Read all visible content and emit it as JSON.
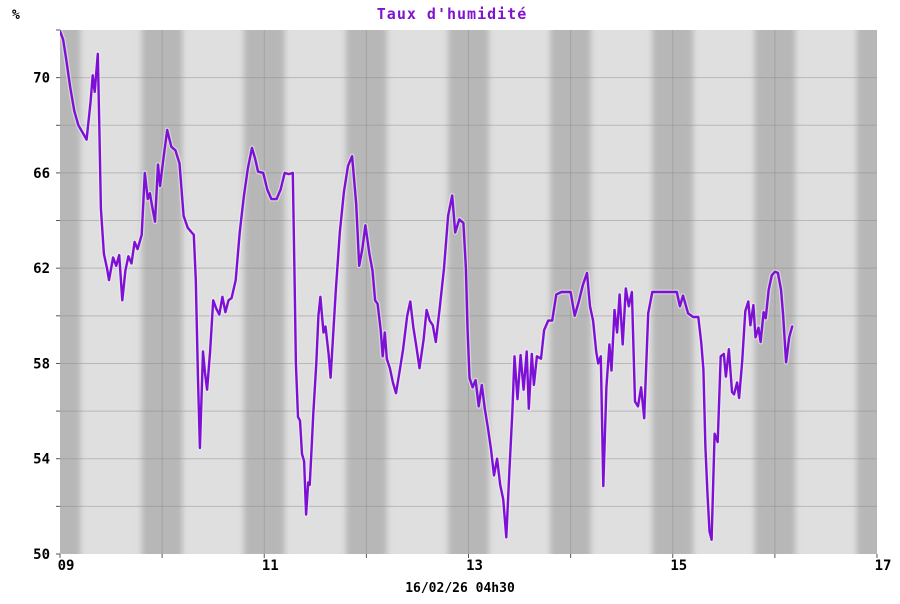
{
  "title": "Taux d'humidité",
  "y_axis_unit_label": "%",
  "footer_label": "16/02/26 04h30",
  "colors": {
    "line": "#7d0fd6",
    "line_halo": "#f2f2f2",
    "title": "#8213cf",
    "stripe_light": "#dfdfdf",
    "stripe_dark": "#b7b7b7",
    "gridline": "#8a8a8a",
    "axis_text": "#000000",
    "background": "#ffffff"
  },
  "chart_data": {
    "type": "line",
    "title": "Taux d'humidité",
    "ylabel": "%",
    "xlabel": "16/02/26 04h30",
    "xlim": [
      9,
      17
    ],
    "ylim": [
      50,
      72
    ],
    "grid": true,
    "legend": "none",
    "x_tick_hours": [
      9,
      11,
      13,
      15,
      17
    ],
    "x_tick_labels": [
      "09",
      "11",
      "13",
      "15",
      "17"
    ],
    "y_tick_values_labeled": [
      50,
      54,
      58,
      62,
      66,
      70
    ],
    "y_gridline_step": 2,
    "x_gridline_step_hours": 1,
    "background_stripes": {
      "centered_on_hour": true,
      "band_width_hours": 0.4,
      "period_hours": 1
    },
    "series": [
      {
        "name": "Taux d'humidité",
        "color": "#7d0fd6",
        "points": [
          [
            9.0,
            71.95
          ],
          [
            9.03,
            71.6
          ],
          [
            9.06,
            70.8
          ],
          [
            9.1,
            69.6
          ],
          [
            9.14,
            68.6
          ],
          [
            9.18,
            68.0
          ],
          [
            9.22,
            67.7
          ],
          [
            9.26,
            67.4
          ],
          [
            9.3,
            69.0
          ],
          [
            9.32,
            70.1
          ],
          [
            9.34,
            69.4
          ],
          [
            9.37,
            71.0
          ],
          [
            9.385,
            68.0
          ],
          [
            9.4,
            64.5
          ],
          [
            9.43,
            62.6
          ],
          [
            9.46,
            62.0
          ],
          [
            9.48,
            61.5
          ],
          [
            9.52,
            62.45
          ],
          [
            9.55,
            62.1
          ],
          [
            9.58,
            62.55
          ],
          [
            9.61,
            60.65
          ],
          [
            9.64,
            61.9
          ],
          [
            9.67,
            62.5
          ],
          [
            9.7,
            62.2
          ],
          [
            9.73,
            63.1
          ],
          [
            9.76,
            62.8
          ],
          [
            9.8,
            63.4
          ],
          [
            9.83,
            66.0
          ],
          [
            9.86,
            64.9
          ],
          [
            9.88,
            65.15
          ],
          [
            9.9,
            64.65
          ],
          [
            9.93,
            63.95
          ],
          [
            9.96,
            66.35
          ],
          [
            9.98,
            65.45
          ],
          [
            10.01,
            66.5
          ],
          [
            10.05,
            67.8
          ],
          [
            10.09,
            67.1
          ],
          [
            10.13,
            66.95
          ],
          [
            10.17,
            66.4
          ],
          [
            10.21,
            64.2
          ],
          [
            10.25,
            63.7
          ],
          [
            10.29,
            63.5
          ],
          [
            10.31,
            63.4
          ],
          [
            10.33,
            61.5
          ],
          [
            10.35,
            57.5
          ],
          [
            10.37,
            54.45
          ],
          [
            10.4,
            58.5
          ],
          [
            10.42,
            57.6
          ],
          [
            10.44,
            56.9
          ],
          [
            10.47,
            58.5
          ],
          [
            10.5,
            60.65
          ],
          [
            10.53,
            60.3
          ],
          [
            10.56,
            60.05
          ],
          [
            10.59,
            60.8
          ],
          [
            10.62,
            60.15
          ],
          [
            10.65,
            60.65
          ],
          [
            10.68,
            60.75
          ],
          [
            10.72,
            61.5
          ],
          [
            10.76,
            63.5
          ],
          [
            10.8,
            65.0
          ],
          [
            10.84,
            66.2
          ],
          [
            10.88,
            67.05
          ],
          [
            10.91,
            66.6
          ],
          [
            10.94,
            66.05
          ],
          [
            10.99,
            66.0
          ],
          [
            11.03,
            65.3
          ],
          [
            11.07,
            64.9
          ],
          [
            11.12,
            64.9
          ],
          [
            11.16,
            65.3
          ],
          [
            11.2,
            66.0
          ],
          [
            11.24,
            65.95
          ],
          [
            11.28,
            66.0
          ],
          [
            11.295,
            62.0
          ],
          [
            11.31,
            58.0
          ],
          [
            11.33,
            55.75
          ],
          [
            11.35,
            55.6
          ],
          [
            11.37,
            54.2
          ],
          [
            11.39,
            53.9
          ],
          [
            11.41,
            51.66
          ],
          [
            11.43,
            53.0
          ],
          [
            11.445,
            52.9
          ],
          [
            11.46,
            54.1
          ],
          [
            11.48,
            55.9
          ],
          [
            11.51,
            58.0
          ],
          [
            11.53,
            60.0
          ],
          [
            11.55,
            60.8
          ],
          [
            11.58,
            59.3
          ],
          [
            11.6,
            59.55
          ],
          [
            11.63,
            58.4
          ],
          [
            11.65,
            57.4
          ],
          [
            11.7,
            61.0
          ],
          [
            11.74,
            63.5
          ],
          [
            11.78,
            65.2
          ],
          [
            11.82,
            66.3
          ],
          [
            11.86,
            66.7
          ],
          [
            11.9,
            64.7
          ],
          [
            11.93,
            62.1
          ],
          [
            11.96,
            62.8
          ],
          [
            11.99,
            63.8
          ],
          [
            12.03,
            62.6
          ],
          [
            12.06,
            61.9
          ],
          [
            12.085,
            60.65
          ],
          [
            12.11,
            60.5
          ],
          [
            12.14,
            59.4
          ],
          [
            12.16,
            58.3
          ],
          [
            12.18,
            59.3
          ],
          [
            12.2,
            58.2
          ],
          [
            12.23,
            57.8
          ],
          [
            12.26,
            57.2
          ],
          [
            12.29,
            56.75
          ],
          [
            12.33,
            57.8
          ],
          [
            12.36,
            58.6
          ],
          [
            12.4,
            60.0
          ],
          [
            12.43,
            60.6
          ],
          [
            12.46,
            59.5
          ],
          [
            12.49,
            58.7
          ],
          [
            12.52,
            57.8
          ],
          [
            12.56,
            59.0
          ],
          [
            12.59,
            60.25
          ],
          [
            12.62,
            59.8
          ],
          [
            12.65,
            59.6
          ],
          [
            12.68,
            58.9
          ],
          [
            12.72,
            60.4
          ],
          [
            12.76,
            62.0
          ],
          [
            12.8,
            64.2
          ],
          [
            12.84,
            65.05
          ],
          [
            12.87,
            63.5
          ],
          [
            12.91,
            64.05
          ],
          [
            12.95,
            63.9
          ],
          [
            12.975,
            62.0
          ],
          [
            12.99,
            59.5
          ],
          [
            13.01,
            57.4
          ],
          [
            13.04,
            57.0
          ],
          [
            13.07,
            57.3
          ],
          [
            13.1,
            56.2
          ],
          [
            13.13,
            57.1
          ],
          [
            13.16,
            56.1
          ],
          [
            13.19,
            55.3
          ],
          [
            13.22,
            54.4
          ],
          [
            13.25,
            53.3
          ],
          [
            13.28,
            54.0
          ],
          [
            13.31,
            52.9
          ],
          [
            13.34,
            52.3
          ],
          [
            13.37,
            50.7
          ],
          [
            13.4,
            53.5
          ],
          [
            13.43,
            56.0
          ],
          [
            13.45,
            58.3
          ],
          [
            13.48,
            56.5
          ],
          [
            13.51,
            58.35
          ],
          [
            13.54,
            56.9
          ],
          [
            13.57,
            58.5
          ],
          [
            13.59,
            56.1
          ],
          [
            13.62,
            58.4
          ],
          [
            13.64,
            57.1
          ],
          [
            13.67,
            58.3
          ],
          [
            13.71,
            58.2
          ],
          [
            13.74,
            59.4
          ],
          [
            13.78,
            59.8
          ],
          [
            13.82,
            59.8
          ],
          [
            13.86,
            60.9
          ],
          [
            13.91,
            61.0
          ],
          [
            13.96,
            61.0
          ],
          [
            14.0,
            61.0
          ],
          [
            14.04,
            60.0
          ],
          [
            14.08,
            60.6
          ],
          [
            14.12,
            61.3
          ],
          [
            14.16,
            61.8
          ],
          [
            14.19,
            60.4
          ],
          [
            14.22,
            59.8
          ],
          [
            14.25,
            58.5
          ],
          [
            14.27,
            58.0
          ],
          [
            14.295,
            58.3
          ],
          [
            14.32,
            52.85
          ],
          [
            14.35,
            57.0
          ],
          [
            14.38,
            58.8
          ],
          [
            14.4,
            57.7
          ],
          [
            14.43,
            60.25
          ],
          [
            14.455,
            59.3
          ],
          [
            14.48,
            60.9
          ],
          [
            14.51,
            58.8
          ],
          [
            14.54,
            61.15
          ],
          [
            14.57,
            60.4
          ],
          [
            14.6,
            61.0
          ],
          [
            14.63,
            56.4
          ],
          [
            14.66,
            56.2
          ],
          [
            14.69,
            57.0
          ],
          [
            14.72,
            55.7
          ],
          [
            14.76,
            60.1
          ],
          [
            14.8,
            61.0
          ],
          [
            14.88,
            61.0
          ],
          [
            14.96,
            61.0
          ],
          [
            15.04,
            61.0
          ],
          [
            15.07,
            60.4
          ],
          [
            15.1,
            60.85
          ],
          [
            15.15,
            60.1
          ],
          [
            15.2,
            59.95
          ],
          [
            15.25,
            59.95
          ],
          [
            15.28,
            58.85
          ],
          [
            15.3,
            57.75
          ],
          [
            15.32,
            54.5
          ],
          [
            15.34,
            52.5
          ],
          [
            15.36,
            50.95
          ],
          [
            15.38,
            50.6
          ],
          [
            15.41,
            55.05
          ],
          [
            15.44,
            54.7
          ],
          [
            15.47,
            58.3
          ],
          [
            15.5,
            58.4
          ],
          [
            15.52,
            57.45
          ],
          [
            15.55,
            58.6
          ],
          [
            15.58,
            56.8
          ],
          [
            15.6,
            56.7
          ],
          [
            15.63,
            57.2
          ],
          [
            15.65,
            56.55
          ],
          [
            15.68,
            58.1
          ],
          [
            15.71,
            60.2
          ],
          [
            15.74,
            60.6
          ],
          [
            15.76,
            59.6
          ],
          [
            15.79,
            60.45
          ],
          [
            15.81,
            59.1
          ],
          [
            15.84,
            59.5
          ],
          [
            15.86,
            58.9
          ],
          [
            15.89,
            60.15
          ],
          [
            15.91,
            59.9
          ],
          [
            15.94,
            61.1
          ],
          [
            15.97,
            61.7
          ],
          [
            16.0,
            61.85
          ],
          [
            16.03,
            61.8
          ],
          [
            16.06,
            61.1
          ],
          [
            16.08,
            60.1
          ],
          [
            16.11,
            58.05
          ],
          [
            16.14,
            59.1
          ],
          [
            16.17,
            59.55
          ]
        ]
      }
    ]
  }
}
